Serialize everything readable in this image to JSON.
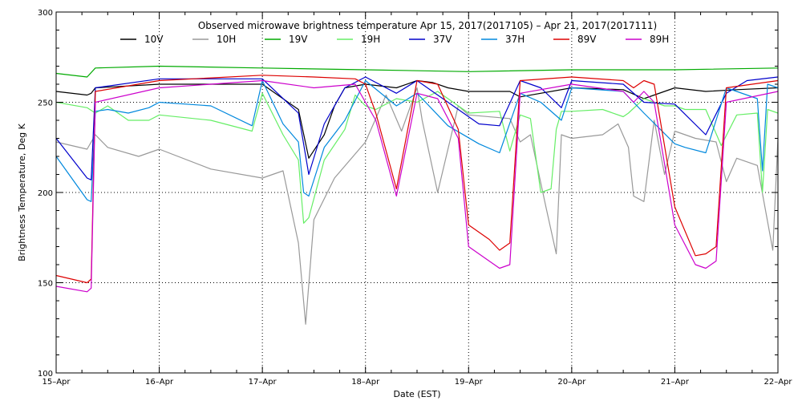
{
  "chart_data": {
    "type": "line",
    "title": "Observed microwave brightness temperature Apr 15, 2017(2017105) – Apr 21, 2017(2017111)",
    "xlabel": "Date (EST)",
    "ylabel": "Brightness Temperature, Deg K",
    "xlim": [
      0,
      7
    ],
    "ylim": [
      100,
      300
    ],
    "x_ticks": [
      {
        "value": 0,
        "label": "15–Apr"
      },
      {
        "value": 1,
        "label": "16–Apr"
      },
      {
        "value": 2,
        "label": "17–Apr"
      },
      {
        "value": 3,
        "label": "18–Apr"
      },
      {
        "value": 4,
        "label": "19–Apr"
      },
      {
        "value": 5,
        "label": "20–Apr"
      },
      {
        "value": 6,
        "label": "21–Apr"
      },
      {
        "value": 7,
        "label": "22–Apr"
      }
    ],
    "y_ticks": [
      100,
      150,
      200,
      250,
      300
    ],
    "grid": true,
    "legend_position": "top",
    "series": [
      {
        "name": "10V",
        "color": "#000000",
        "x": [
          0,
          0.3,
          0.34,
          0.38,
          1,
          2,
          2.35,
          2.45,
          2.6,
          2.7,
          2.8,
          3,
          3.3,
          3.5,
          3.65,
          3.8,
          4,
          4.4,
          4.5,
          5,
          5.5,
          5.7,
          6,
          6.3,
          6.6,
          7
        ],
        "y": [
          256,
          254,
          255,
          258,
          260,
          260,
          246,
          219,
          232,
          248,
          258,
          260,
          258,
          262,
          261,
          258,
          256,
          256,
          253,
          258,
          257,
          252,
          258,
          256,
          257,
          258
        ]
      },
      {
        "name": "10H",
        "color": "#999999",
        "x": [
          0,
          0.3,
          0.38,
          0.5,
          0.8,
          1,
          1.5,
          2,
          2.2,
          2.35,
          2.42,
          2.5,
          2.7,
          3,
          3.2,
          3.35,
          3.5,
          3.55,
          3.7,
          3.9,
          4,
          4.4,
          4.5,
          4.6,
          4.75,
          4.85,
          4.9,
          5,
          5.3,
          5.45,
          5.55,
          5.6,
          5.7,
          5.8,
          5.9,
          6,
          6.2,
          6.4,
          6.5,
          6.6,
          6.8,
          6.95,
          7
        ],
        "y": [
          228,
          224,
          232,
          225,
          220,
          224,
          213,
          208,
          212,
          172,
          127,
          185,
          208,
          228,
          254,
          234,
          258,
          240,
          200,
          248,
          243,
          241,
          228,
          232,
          192,
          166,
          232,
          230,
          232,
          238,
          225,
          198,
          195,
          240,
          210,
          234,
          230,
          228,
          206,
          219,
          215,
          168,
          230
        ]
      },
      {
        "name": "19V",
        "color": "#00aa00",
        "x": [
          0,
          0.3,
          0.38,
          1,
          2,
          3,
          4,
          5,
          6,
          7
        ],
        "y": [
          266,
          264,
          269,
          270,
          269,
          268,
          267,
          268,
          268,
          269
        ]
      },
      {
        "name": "19H",
        "color": "#66ee66",
        "x": [
          0,
          0.3,
          0.38,
          0.5,
          0.7,
          0.9,
          1,
          1.5,
          1.9,
          2,
          2.2,
          2.35,
          2.4,
          2.45,
          2.6,
          2.8,
          2.9,
          3,
          3.1,
          3.3,
          3.5,
          3.7,
          3.9,
          4,
          4.3,
          4.4,
          4.5,
          4.6,
          4.7,
          4.8,
          4.85,
          4.9,
          5,
          5.3,
          5.5,
          5.55,
          5.7,
          5.9,
          6,
          6.1,
          6.3,
          6.45,
          6.6,
          6.8,
          6.85,
          6.9,
          7
        ],
        "y": [
          250,
          247,
          244,
          248,
          240,
          240,
          243,
          240,
          234,
          255,
          232,
          218,
          183,
          186,
          218,
          235,
          254,
          248,
          246,
          252,
          250,
          256,
          248,
          244,
          245,
          223,
          243,
          241,
          200,
          202,
          235,
          245,
          245,
          246,
          242,
          244,
          252,
          248,
          248,
          246,
          246,
          226,
          243,
          244,
          200,
          246,
          244
        ]
      },
      {
        "name": "37V",
        "color": "#0000cc",
        "x": [
          0,
          0.3,
          0.34,
          0.38,
          1,
          2,
          2.35,
          2.45,
          2.6,
          2.8,
          3,
          3.3,
          3.5,
          3.8,
          4.1,
          4.3,
          4.5,
          4.7,
          4.9,
          5,
          5.5,
          5.7,
          6,
          6.3,
          6.5,
          6.7,
          7
        ],
        "y": [
          230,
          208,
          207,
          258,
          263,
          263,
          244,
          210,
          238,
          258,
          264,
          255,
          262,
          250,
          238,
          237,
          262,
          258,
          247,
          262,
          260,
          250,
          249,
          232,
          255,
          262,
          264
        ]
      },
      {
        "name": "37H",
        "color": "#0088dd",
        "x": [
          0,
          0.3,
          0.34,
          0.38,
          0.5,
          0.7,
          0.9,
          1,
          1.5,
          1.9,
          2,
          2.2,
          2.35,
          2.4,
          2.45,
          2.6,
          2.8,
          3,
          3.3,
          3.5,
          3.8,
          4.1,
          4.3,
          4.5,
          4.7,
          4.9,
          5,
          5.5,
          5.7,
          6,
          6.1,
          6.3,
          6.5,
          6.8,
          6.85,
          6.9,
          7
        ],
        "y": [
          220,
          196,
          195,
          245,
          246,
          244,
          247,
          250,
          248,
          237,
          262,
          238,
          228,
          200,
          198,
          225,
          240,
          262,
          248,
          255,
          237,
          227,
          222,
          255,
          250,
          240,
          258,
          256,
          244,
          227,
          225,
          222,
          258,
          252,
          212,
          260,
          258
        ]
      },
      {
        "name": "89V",
        "color": "#dd0000",
        "x": [
          0,
          0.3,
          0.34,
          0.38,
          1,
          2,
          2.5,
          2.9,
          3,
          3.1,
          3.3,
          3.5,
          3.7,
          3.9,
          4,
          4.2,
          4.3,
          4.4,
          4.5,
          5,
          5.5,
          5.6,
          5.7,
          5.8,
          6,
          6.2,
          6.3,
          6.4,
          6.5,
          7
        ],
        "y": [
          154,
          150,
          152,
          256,
          262,
          265,
          264,
          263,
          260,
          244,
          202,
          262,
          260,
          235,
          182,
          174,
          168,
          172,
          262,
          264,
          262,
          258,
          262,
          260,
          192,
          165,
          166,
          170,
          258,
          262
        ]
      },
      {
        "name": "89H",
        "color": "#cc00cc",
        "x": [
          0,
          0.3,
          0.34,
          0.38,
          1,
          2,
          2.5,
          2.9,
          3,
          3.1,
          3.3,
          3.5,
          3.7,
          3.9,
          4,
          4.2,
          4.3,
          4.4,
          4.5,
          5,
          5.5,
          5.6,
          5.7,
          5.8,
          6,
          6.2,
          6.3,
          6.4,
          6.5,
          7
        ],
        "y": [
          148,
          145,
          147,
          250,
          258,
          262,
          258,
          260,
          250,
          240,
          198,
          255,
          252,
          230,
          170,
          162,
          158,
          160,
          255,
          260,
          256,
          250,
          256,
          250,
          182,
          160,
          158,
          162,
          250,
          256
        ]
      }
    ]
  }
}
